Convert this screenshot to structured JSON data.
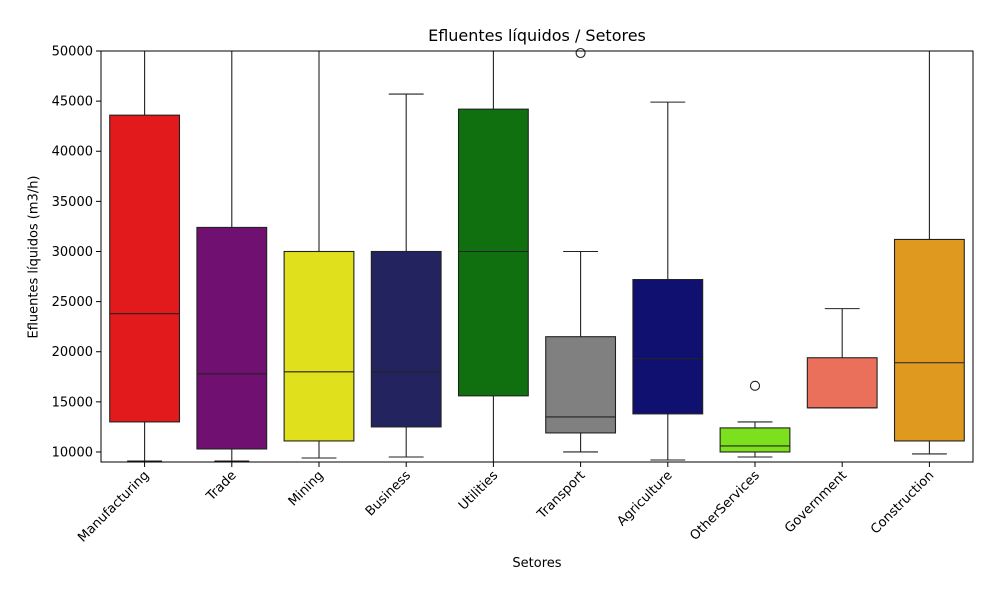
{
  "chart_data": {
    "type": "box",
    "title": "Efluentes líquidos / Setores",
    "xlabel": "Setores",
    "ylabel": "Efluentes líquidos (m3/h)",
    "ylim": [
      9000,
      50000
    ],
    "yticks": [
      10000,
      15000,
      20000,
      25000,
      30000,
      35000,
      40000,
      45000,
      50000
    ],
    "grid": false,
    "categories": [
      "Manufacturing",
      "Trade",
      "Mining",
      "Business",
      "Utilities",
      "Transport",
      "Agriculture",
      "OtherServices",
      "Government",
      "Construction"
    ],
    "boxes": [
      {
        "category": "Manufacturing",
        "color": "#e31a1c",
        "whisker_low": 9100,
        "q1": 13000,
        "median": 23800,
        "q3": 43600,
        "whisker_high": 50000,
        "outliers": []
      },
      {
        "category": "Trade",
        "color": "#701070",
        "whisker_low": 9100,
        "q1": 10300,
        "median": 17800,
        "q3": 32400,
        "whisker_high": 50000,
        "outliers": []
      },
      {
        "category": "Mining",
        "color": "#e0e01c",
        "whisker_low": 9400,
        "q1": 11100,
        "median": 18000,
        "q3": 30000,
        "whisker_high": 50000,
        "outliers": []
      },
      {
        "category": "Business",
        "color": "#23235f",
        "whisker_low": 9500,
        "q1": 12500,
        "median": 18000,
        "q3": 30000,
        "whisker_high": 45700,
        "outliers": []
      },
      {
        "category": "Utilities",
        "color": "#107010",
        "whisker_low": 9000,
        "q1": 15600,
        "median": 30000,
        "q3": 44200,
        "whisker_high": 50000,
        "outliers": []
      },
      {
        "category": "Transport",
        "color": "#808080",
        "whisker_low": 10000,
        "q1": 11900,
        "median": 13500,
        "q3": 21500,
        "whisker_high": 30000,
        "outliers": [
          49800
        ]
      },
      {
        "category": "Agriculture",
        "color": "#101070",
        "whisker_low": 9200,
        "q1": 13800,
        "median": 19300,
        "q3": 27200,
        "whisker_high": 44900,
        "outliers": []
      },
      {
        "category": "OtherServices",
        "color": "#7ce01c",
        "whisker_low": 9500,
        "q1": 10000,
        "median": 10600,
        "q3": 12400,
        "whisker_high": 13000,
        "outliers": [
          16600
        ]
      },
      {
        "category": "Government",
        "color": "#eb705c",
        "whisker_low": 14400,
        "q1": 14400,
        "median": 14400,
        "q3": 19400,
        "whisker_high": 24300,
        "outliers": []
      },
      {
        "category": "Construction",
        "color": "#e0991f",
        "whisker_low": 9800,
        "q1": 11100,
        "median": 18900,
        "q3": 31200,
        "whisker_high": 50000,
        "outliers": []
      }
    ]
  }
}
